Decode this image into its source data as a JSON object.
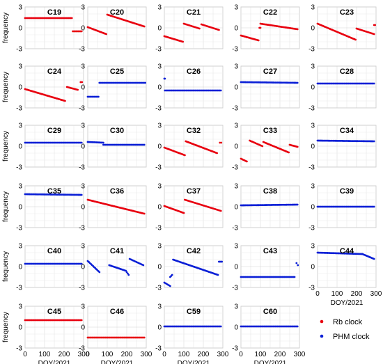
{
  "figure": {
    "ylabel": "frequency",
    "xlabel": "DOY/2021",
    "colors": {
      "Rb": "#e8000f",
      "PHM": "#0a1fd6"
    },
    "legend": [
      {
        "key": "Rb",
        "label": "Rb clock",
        "color": "#e8000f"
      },
      {
        "key": "PHM",
        "label": "PHM clock",
        "color": "#0a1fd6"
      }
    ]
  },
  "chart_data": [
    {
      "type": "scatter",
      "title": "C19",
      "clock": "Rb",
      "xlim": [
        0,
        300
      ],
      "ylim": [
        -3,
        3
      ],
      "xticks": [
        0,
        100,
        200,
        300
      ],
      "yticks": [
        -3,
        0,
        3
      ],
      "grid": true,
      "segments": [
        {
          "x": [
            0,
            240
          ],
          "y": [
            1.4,
            1.4
          ]
        },
        {
          "x": [
            245,
            290
          ],
          "y": [
            -0.5,
            -0.5
          ]
        }
      ]
    },
    {
      "type": "scatter",
      "title": "C20",
      "clock": "Rb",
      "xlim": [
        0,
        300
      ],
      "ylim": [
        -3,
        3
      ],
      "xticks": [
        0,
        100,
        200,
        300
      ],
      "yticks": [
        -3,
        0,
        3
      ],
      "grid": true,
      "segments": [
        {
          "x": [
            0,
            95
          ],
          "y": [
            0.1,
            -0.9
          ]
        },
        {
          "x": [
            100,
            290
          ],
          "y": [
            1.9,
            0.2
          ]
        }
      ]
    },
    {
      "type": "scatter",
      "title": "C21",
      "clock": "Rb",
      "xlim": [
        0,
        300
      ],
      "ylim": [
        -3,
        3
      ],
      "xticks": [
        0,
        100,
        200,
        300
      ],
      "yticks": [
        -3,
        0,
        3
      ],
      "grid": true,
      "segments": [
        {
          "x": [
            0,
            95
          ],
          "y": [
            -1.2,
            -2.0
          ]
        },
        {
          "x": [
            100,
            180
          ],
          "y": [
            0.6,
            -0.1
          ]
        },
        {
          "x": [
            190,
            280
          ],
          "y": [
            0.5,
            -0.3
          ]
        }
      ]
    },
    {
      "type": "scatter",
      "title": "C22",
      "clock": "Rb",
      "xlim": [
        0,
        300
      ],
      "ylim": [
        -3,
        3
      ],
      "xticks": [
        0,
        100,
        200,
        300
      ],
      "yticks": [
        -3,
        0,
        3
      ],
      "grid": true,
      "segments": [
        {
          "x": [
            0,
            90
          ],
          "y": [
            -1.1,
            -1.8
          ]
        },
        {
          "x": [
            95,
            100
          ],
          "y": [
            0.0,
            0.0
          ]
        },
        {
          "x": [
            100,
            290
          ],
          "y": [
            0.6,
            -0.2
          ]
        }
      ]
    },
    {
      "type": "scatter",
      "title": "C23",
      "clock": "Rb",
      "xlim": [
        0,
        300
      ],
      "ylim": [
        -3,
        3
      ],
      "xticks": [
        0,
        100,
        200,
        300
      ],
      "yticks": [
        -3,
        0,
        3
      ],
      "grid": true,
      "segments": [
        {
          "x": [
            0,
            195
          ],
          "y": [
            0.6,
            -1.7
          ]
        },
        {
          "x": [
            200,
            290
          ],
          "y": [
            -0.1,
            -0.9
          ]
        },
        {
          "x": [
            290,
            295
          ],
          "y": [
            0.4,
            0.4
          ]
        }
      ]
    },
    {
      "type": "scatter",
      "title": "C24",
      "clock": "Rb",
      "xlim": [
        0,
        300
      ],
      "ylim": [
        -3,
        3
      ],
      "xticks": [
        0,
        100,
        200,
        300
      ],
      "yticks": [
        -3,
        0,
        3
      ],
      "grid": true,
      "segments": [
        {
          "x": [
            0,
            205
          ],
          "y": [
            -0.3,
            -2.0
          ]
        },
        {
          "x": [
            215,
            270
          ],
          "y": [
            0.0,
            -0.4
          ]
        },
        {
          "x": [
            285,
            292
          ],
          "y": [
            0.7,
            0.7
          ]
        }
      ]
    },
    {
      "type": "scatter",
      "title": "C25",
      "clock": "PHM",
      "xlim": [
        0,
        300
      ],
      "ylim": [
        -3,
        3
      ],
      "xticks": [
        0,
        100,
        200,
        300
      ],
      "yticks": [
        -3,
        0,
        3
      ],
      "grid": true,
      "segments": [
        {
          "x": [
            0,
            55
          ],
          "y": [
            -1.4,
            -1.4
          ]
        },
        {
          "x": [
            60,
            295
          ],
          "y": [
            0.6,
            0.6
          ]
        }
      ]
    },
    {
      "type": "scatter",
      "title": "C26",
      "clock": "PHM",
      "xlim": [
        0,
        300
      ],
      "ylim": [
        -3,
        3
      ],
      "xticks": [
        0,
        100,
        200,
        300
      ],
      "yticks": [
        -3,
        0,
        3
      ],
      "grid": true,
      "segments": [
        {
          "x": [
            0,
            3
          ],
          "y": [
            1.2,
            1.2
          ]
        },
        {
          "x": [
            3,
            290
          ],
          "y": [
            -0.5,
            -0.5
          ]
        }
      ]
    },
    {
      "type": "scatter",
      "title": "C27",
      "clock": "PHM",
      "xlim": [
        0,
        300
      ],
      "ylim": [
        -3,
        3
      ],
      "xticks": [
        0,
        100,
        200,
        300
      ],
      "yticks": [
        -3,
        0,
        3
      ],
      "grid": true,
      "segments": [
        {
          "x": [
            0,
            290
          ],
          "y": [
            0.7,
            0.6
          ]
        }
      ]
    },
    {
      "type": "scatter",
      "title": "C28",
      "clock": "PHM",
      "xlim": [
        0,
        300
      ],
      "ylim": [
        -3,
        3
      ],
      "xticks": [
        0,
        100,
        200,
        300
      ],
      "yticks": [
        -3,
        0,
        3
      ],
      "grid": true,
      "segments": [
        {
          "x": [
            0,
            290
          ],
          "y": [
            0.5,
            0.5
          ]
        }
      ]
    },
    {
      "type": "scatter",
      "title": "C29",
      "clock": "PHM",
      "xlim": [
        0,
        300
      ],
      "ylim": [
        -3,
        3
      ],
      "xticks": [
        0,
        100,
        200,
        300
      ],
      "yticks": [
        -3,
        0,
        3
      ],
      "grid": true,
      "segments": [
        {
          "x": [
            0,
            290
          ],
          "y": [
            0.5,
            0.5
          ]
        }
      ]
    },
    {
      "type": "scatter",
      "title": "C30",
      "clock": "PHM",
      "xlim": [
        0,
        300
      ],
      "ylim": [
        -3,
        3
      ],
      "xticks": [
        0,
        100,
        200,
        300
      ],
      "yticks": [
        -3,
        0,
        3
      ],
      "grid": true,
      "segments": [
        {
          "x": [
            0,
            80
          ],
          "y": [
            0.6,
            0.5
          ]
        },
        {
          "x": [
            80,
            290
          ],
          "y": [
            0.2,
            0.2
          ]
        }
      ]
    },
    {
      "type": "scatter",
      "title": "C32",
      "clock": "Rb",
      "xlim": [
        0,
        300
      ],
      "ylim": [
        -3,
        3
      ],
      "xticks": [
        0,
        100,
        200,
        300
      ],
      "yticks": [
        -3,
        0,
        3
      ],
      "grid": true,
      "segments": [
        {
          "x": [
            0,
            105
          ],
          "y": [
            -0.2,
            -1.3
          ]
        },
        {
          "x": [
            110,
            270
          ],
          "y": [
            0.7,
            -1.0
          ]
        },
        {
          "x": [
            285,
            292
          ],
          "y": [
            0.5,
            0.5
          ]
        }
      ]
    },
    {
      "type": "scatter",
      "title": "C33",
      "clock": "Rb",
      "xlim": [
        0,
        300
      ],
      "ylim": [
        -3,
        3
      ],
      "xticks": [
        0,
        100,
        200,
        300
      ],
      "yticks": [
        -3,
        0,
        3
      ],
      "grid": true,
      "segments": [
        {
          "x": [
            0,
            30
          ],
          "y": [
            -1.8,
            -2.2
          ]
        },
        {
          "x": [
            45,
            110
          ],
          "y": [
            0.8,
            0.0
          ]
        },
        {
          "x": [
            115,
            245
          ],
          "y": [
            0.6,
            -0.9
          ]
        },
        {
          "x": [
            250,
            290
          ],
          "y": [
            0.2,
            -0.1
          ]
        }
      ]
    },
    {
      "type": "scatter",
      "title": "C34",
      "clock": "PHM",
      "xlim": [
        0,
        300
      ],
      "ylim": [
        -3,
        3
      ],
      "xticks": [
        0,
        100,
        200,
        300
      ],
      "yticks": [
        -3,
        0,
        3
      ],
      "grid": true,
      "segments": [
        {
          "x": [
            0,
            290
          ],
          "y": [
            0.8,
            0.7
          ]
        }
      ]
    },
    {
      "type": "scatter",
      "title": "C35",
      "clock": "PHM",
      "xlim": [
        0,
        300
      ],
      "ylim": [
        -3,
        3
      ],
      "xticks": [
        0,
        100,
        200,
        300
      ],
      "yticks": [
        -3,
        0,
        3
      ],
      "grid": true,
      "segments": [
        {
          "x": [
            0,
            290
          ],
          "y": [
            1.8,
            1.7
          ]
        }
      ]
    },
    {
      "type": "scatter",
      "title": "C36",
      "clock": "Rb",
      "xlim": [
        0,
        300
      ],
      "ylim": [
        -3,
        3
      ],
      "xticks": [
        0,
        100,
        200,
        300
      ],
      "yticks": [
        -3,
        0,
        3
      ],
      "grid": true,
      "segments": [
        {
          "x": [
            0,
            290
          ],
          "y": [
            1.0,
            -1.0
          ]
        }
      ]
    },
    {
      "type": "scatter",
      "title": "C37",
      "clock": "Rb",
      "xlim": [
        0,
        300
      ],
      "ylim": [
        -3,
        3
      ],
      "xticks": [
        0,
        100,
        200,
        300
      ],
      "yticks": [
        -3,
        0,
        3
      ],
      "grid": true,
      "segments": [
        {
          "x": [
            0,
            100
          ],
          "y": [
            0.1,
            -0.9
          ]
        },
        {
          "x": [
            105,
            290
          ],
          "y": [
            1.0,
            -0.6
          ]
        }
      ]
    },
    {
      "type": "scatter",
      "title": "C38",
      "clock": "PHM",
      "xlim": [
        0,
        300
      ],
      "ylim": [
        -3,
        3
      ],
      "xticks": [
        0,
        100,
        200,
        300
      ],
      "yticks": [
        -3,
        0,
        3
      ],
      "grid": true,
      "segments": [
        {
          "x": [
            0,
            290
          ],
          "y": [
            0.2,
            0.3
          ]
        }
      ]
    },
    {
      "type": "scatter",
      "title": "C39",
      "clock": "PHM",
      "xlim": [
        0,
        300
      ],
      "ylim": [
        -3,
        3
      ],
      "xticks": [
        0,
        100,
        200,
        300
      ],
      "yticks": [
        -3,
        0,
        3
      ],
      "grid": true,
      "segments": [
        {
          "x": [
            0,
            290
          ],
          "y": [
            0.0,
            0.0
          ]
        }
      ]
    },
    {
      "type": "scatter",
      "title": "C40",
      "clock": "PHM",
      "xlim": [
        0,
        300
      ],
      "ylim": [
        -3,
        3
      ],
      "xticks": [
        0,
        100,
        200,
        300
      ],
      "yticks": [
        -3,
        0,
        3
      ],
      "grid": true,
      "segments": [
        {
          "x": [
            0,
            290
          ],
          "y": [
            0.4,
            0.4
          ]
        }
      ]
    },
    {
      "type": "scatter",
      "title": "C41",
      "clock": "PHM",
      "xlim": [
        0,
        300
      ],
      "ylim": [
        -3,
        3
      ],
      "xticks": [
        0,
        100,
        200,
        300
      ],
      "yticks": [
        -3,
        0,
        3
      ],
      "grid": true,
      "segments": [
        {
          "x": [
            0,
            60
          ],
          "y": [
            0.8,
            -0.8
          ]
        },
        {
          "x": [
            110,
            195
          ],
          "y": [
            0.2,
            -0.6
          ]
        },
        {
          "x": [
            200,
            210
          ],
          "y": [
            -0.8,
            -1.2
          ]
        },
        {
          "x": [
            215,
            285
          ],
          "y": [
            1.1,
            0.2
          ]
        }
      ]
    },
    {
      "type": "scatter",
      "title": "C42",
      "clock": "PHM",
      "xlim": [
        0,
        300
      ],
      "ylim": [
        -3,
        3
      ],
      "xticks": [
        0,
        100,
        200,
        300
      ],
      "yticks": [
        -3,
        0,
        3
      ],
      "grid": true,
      "segments": [
        {
          "x": [
            0,
            30
          ],
          "y": [
            -2.3,
            -2.8
          ]
        },
        {
          "x": [
            30,
            40
          ],
          "y": [
            -1.5,
            -1.2
          ]
        },
        {
          "x": [
            45,
            275
          ],
          "y": [
            1.0,
            -1.2
          ]
        },
        {
          "x": [
            280,
            295
          ],
          "y": [
            0.7,
            0.7
          ]
        }
      ]
    },
    {
      "type": "scatter",
      "title": "C43",
      "clock": "PHM",
      "xlim": [
        0,
        300
      ],
      "ylim": [
        -3,
        3
      ],
      "xticks": [
        0,
        100,
        200,
        300
      ],
      "yticks": [
        -3,
        0,
        3
      ],
      "grid": true,
      "segments": [
        {
          "x": [
            0,
            275
          ],
          "y": [
            -1.5,
            -1.5
          ]
        },
        {
          "x": [
            285,
            292
          ],
          "y": [
            0.5,
            0.2
          ]
        }
      ]
    },
    {
      "type": "scatter",
      "title": "C44",
      "clock": "PHM",
      "xlim": [
        0,
        300
      ],
      "ylim": [
        -3,
        3
      ],
      "xticks": [
        0,
        100,
        200,
        300
      ],
      "yticks": [
        -3,
        0,
        3
      ],
      "grid": true,
      "segments": [
        {
          "x": [
            0,
            230
          ],
          "y": [
            2.0,
            1.8
          ]
        },
        {
          "x": [
            230,
            290
          ],
          "y": [
            1.8,
            1.1
          ]
        }
      ]
    },
    {
      "type": "scatter",
      "title": "C45",
      "clock": "Rb",
      "xlim": [
        0,
        300
      ],
      "ylim": [
        -3,
        3
      ],
      "xticks": [
        0,
        100,
        200,
        300
      ],
      "yticks": [
        -3,
        0,
        3
      ],
      "grid": true,
      "segments": [
        {
          "x": [
            0,
            290
          ],
          "y": [
            1.0,
            1.0
          ]
        }
      ]
    },
    {
      "type": "scatter",
      "title": "C46",
      "clock": "Rb",
      "xlim": [
        0,
        300
      ],
      "ylim": [
        -3,
        3
      ],
      "xticks": [
        0,
        100,
        200,
        300
      ],
      "yticks": [
        -3,
        0,
        3
      ],
      "grid": true,
      "segments": [
        {
          "x": [
            0,
            290
          ],
          "y": [
            -1.5,
            -1.5
          ]
        }
      ]
    },
    {
      "type": "scatter",
      "title": "C59",
      "clock": "PHM",
      "xlim": [
        0,
        300
      ],
      "ylim": [
        -3,
        3
      ],
      "xticks": [
        0,
        100,
        200,
        300
      ],
      "yticks": [
        -3,
        0,
        3
      ],
      "grid": true,
      "segments": [
        {
          "x": [
            0,
            290
          ],
          "y": [
            0.1,
            0.1
          ]
        }
      ]
    },
    {
      "type": "scatter",
      "title": "C60",
      "clock": "PHM",
      "xlim": [
        0,
        300
      ],
      "ylim": [
        -3,
        3
      ],
      "xticks": [
        0,
        100,
        200,
        300
      ],
      "yticks": [
        -3,
        0,
        3
      ],
      "grid": true,
      "segments": [
        {
          "x": [
            0,
            290
          ],
          "y": [
            0.1,
            0.1
          ]
        }
      ]
    }
  ]
}
